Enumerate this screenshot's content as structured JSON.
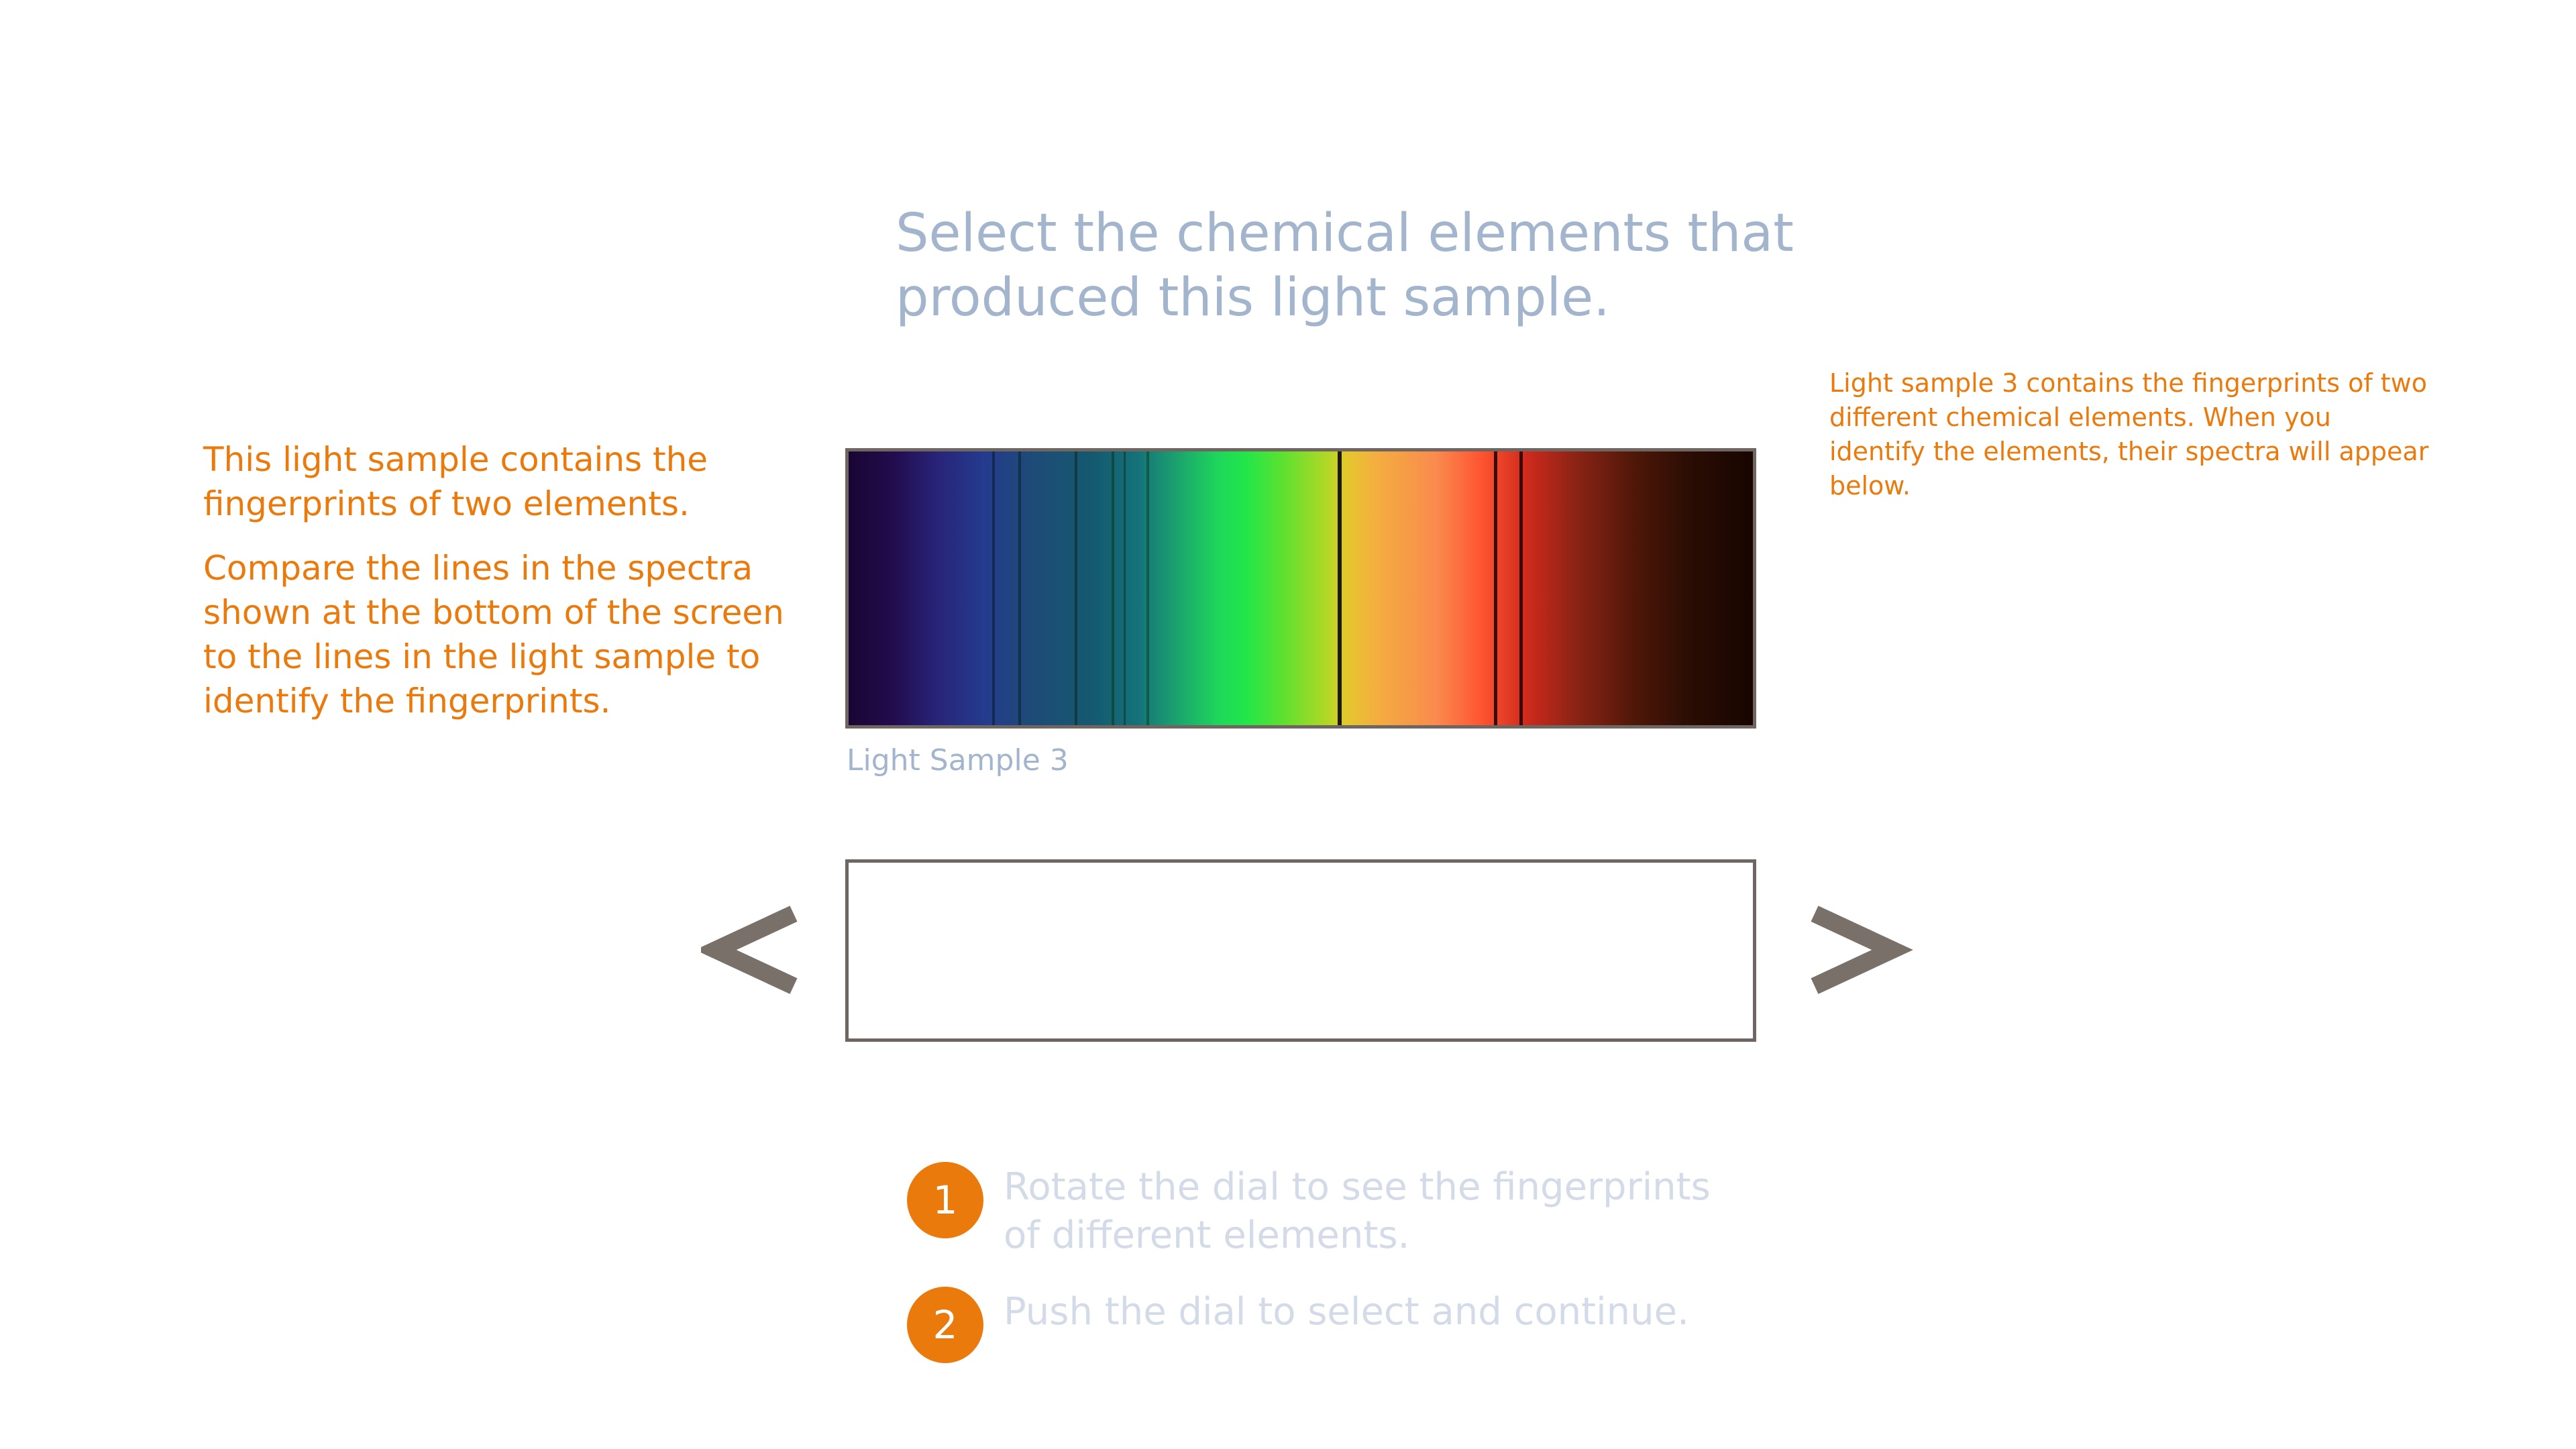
{
  "heading": "Select the chemical elements that produced this light sample.",
  "instructions": {
    "intro": "This light sample contains the fingerprints of two elements.",
    "compare": "Compare the lines in the spectra shown at the bottom of the screen to the lines in the light sample to identify the fingerprints."
  },
  "hint": "Light sample 3 contains the fingerprints of two different chemical elements. When you identify the elements, their spectra will appear below.",
  "sample_label": "Light Sample 3",
  "navigation": {
    "prev_icon": "chevron-left-icon",
    "next_icon": "chevron-right-icon",
    "arrow_color": "#7a706a"
  },
  "steps": [
    {
      "number": "1",
      "text": "Rotate the dial to see the fingerprints of different elements."
    },
    {
      "number": "2",
      "text": "Push the dial to select and continue."
    }
  ],
  "colors": {
    "accent_orange": "#eb7a0d",
    "title_blue": "#a3b4cd",
    "step_text": "#d2dbe7",
    "frame": "#6f6661"
  }
}
